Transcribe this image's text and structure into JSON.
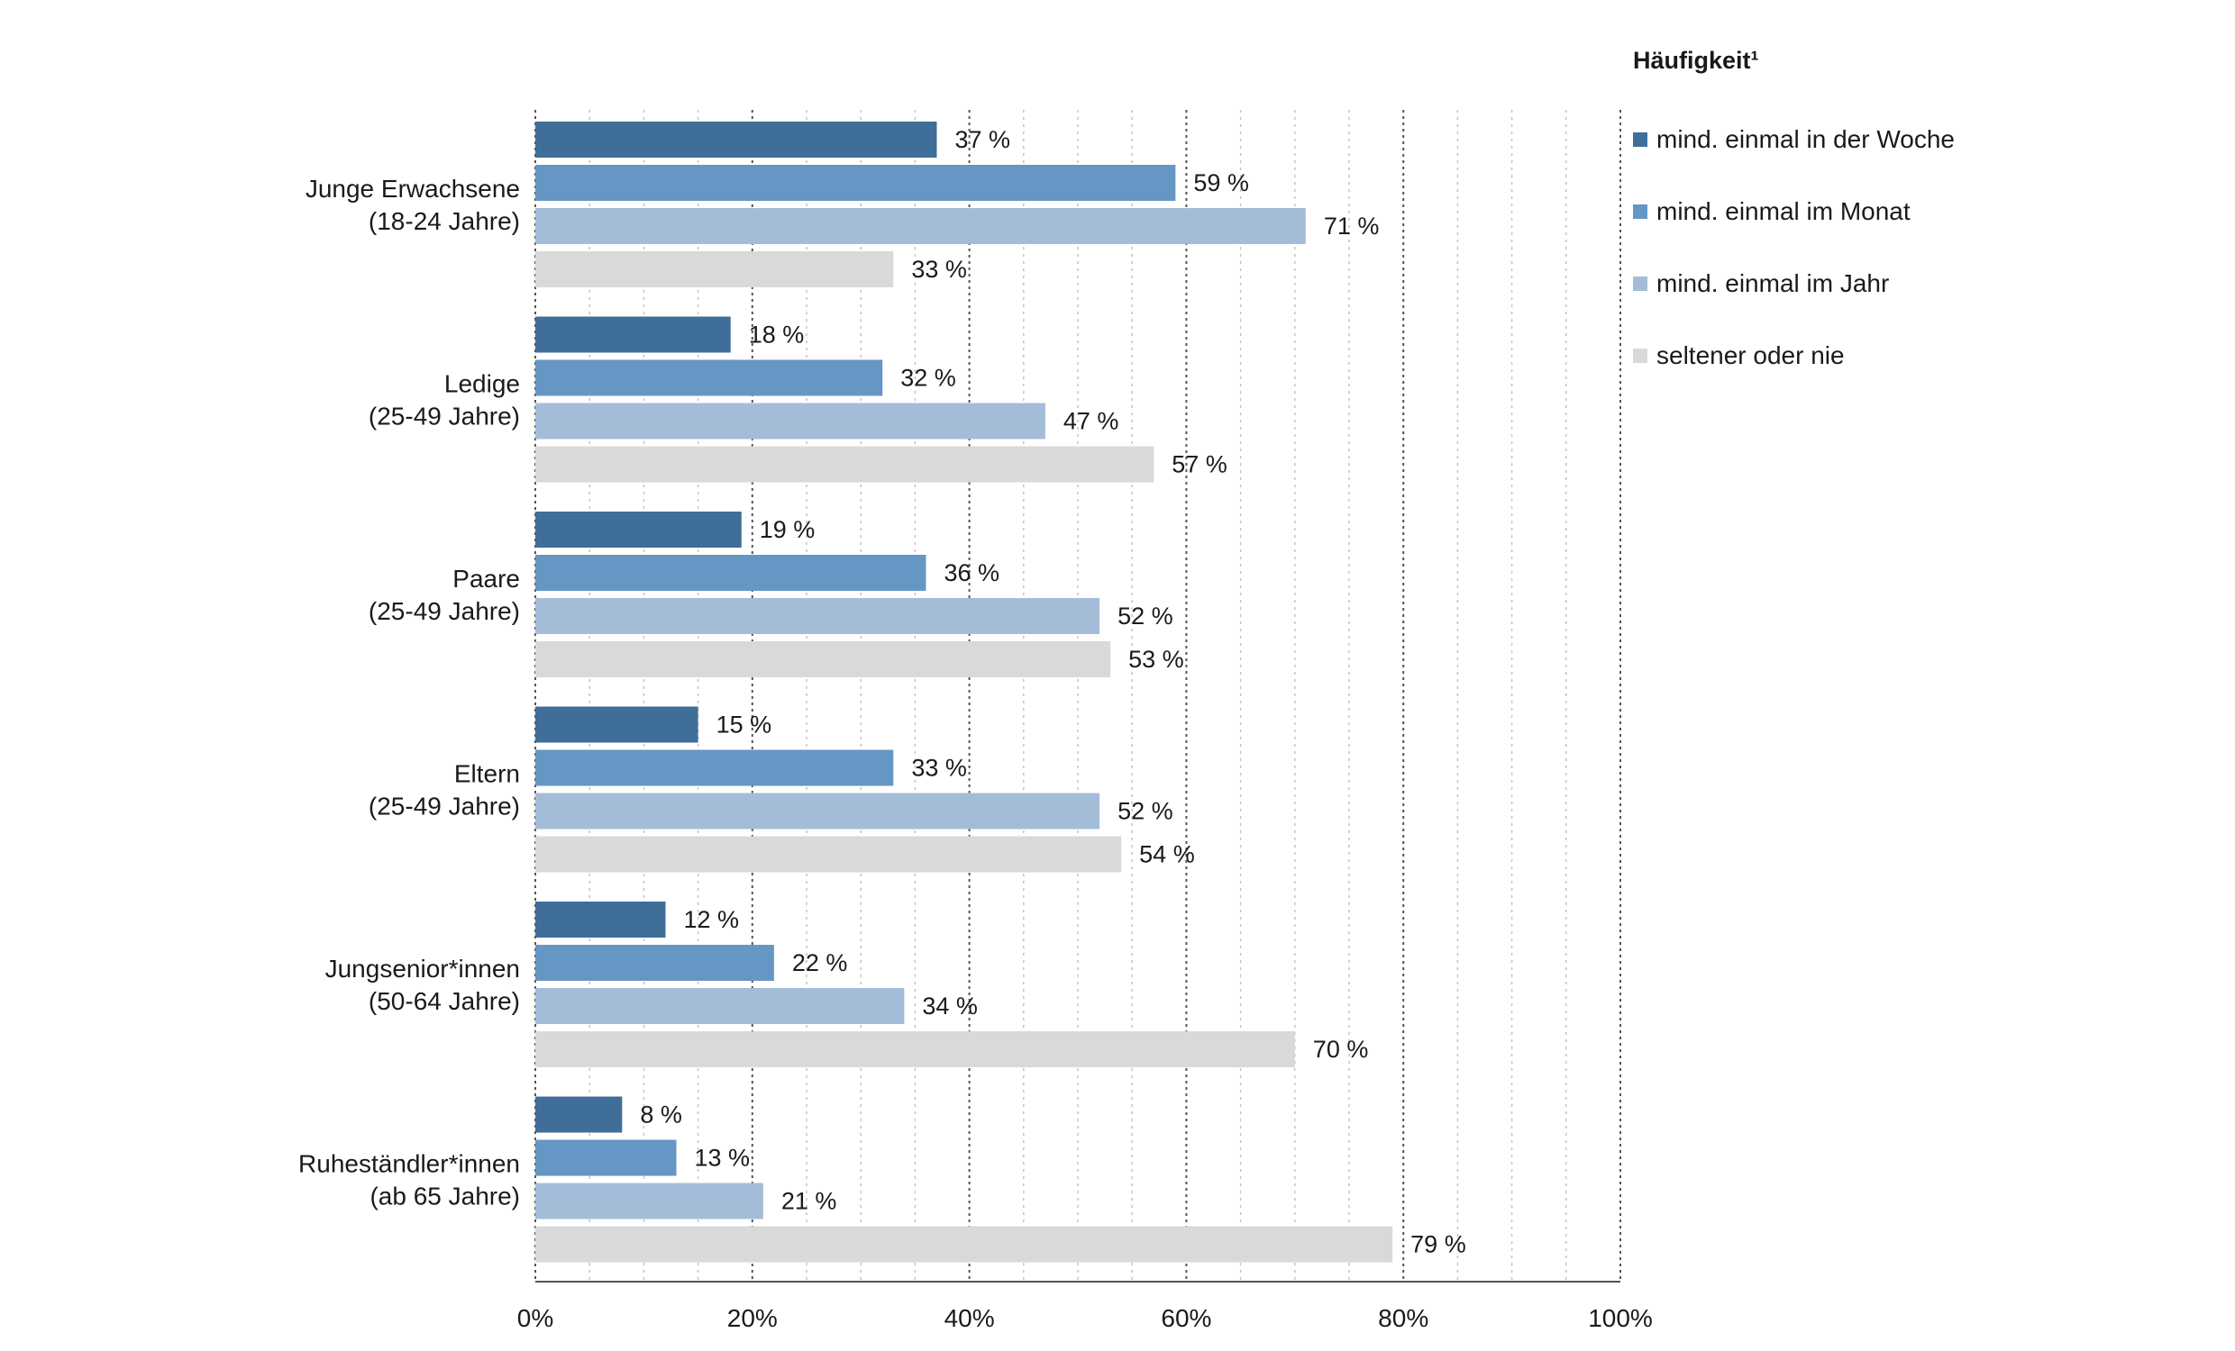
{
  "chart_data": {
    "type": "bar",
    "orientation": "horizontal",
    "categories": [
      [
        "Junge Erwachsene",
        "(18-24 Jahre)"
      ],
      [
        "Ledige",
        "(25-49 Jahre)"
      ],
      [
        "Paare",
        "(25-49 Jahre)"
      ],
      [
        "Eltern",
        "(25-49 Jahre)"
      ],
      [
        "Jungsenior*innen",
        "(50-64 Jahre)"
      ],
      [
        "Ruheständler*innen",
        "(ab 65 Jahre)"
      ]
    ],
    "series": [
      {
        "name": "mind. einmal in der Woche",
        "color": "#3f6e99",
        "values": [
          37,
          18,
          19,
          15,
          12,
          8
        ]
      },
      {
        "name": "mind. einmal im Monat",
        "color": "#6696c3",
        "values": [
          59,
          32,
          36,
          33,
          22,
          13
        ]
      },
      {
        "name": "mind. einmal im Jahr",
        "color": "#a3bdd9",
        "values": [
          71,
          47,
          52,
          52,
          34,
          21
        ]
      },
      {
        "name": "seltener oder nie",
        "color": "#d9d9d9",
        "values": [
          33,
          57,
          53,
          54,
          70,
          79
        ]
      }
    ],
    "xlim": [
      0,
      100
    ],
    "x_ticks": [
      "0%",
      "20%",
      "40%",
      "60%",
      "80%",
      "100%"
    ],
    "value_suffix": " %",
    "grid": true,
    "legend_title": "Häufigkeit¹",
    "legend_position": "top-right"
  }
}
